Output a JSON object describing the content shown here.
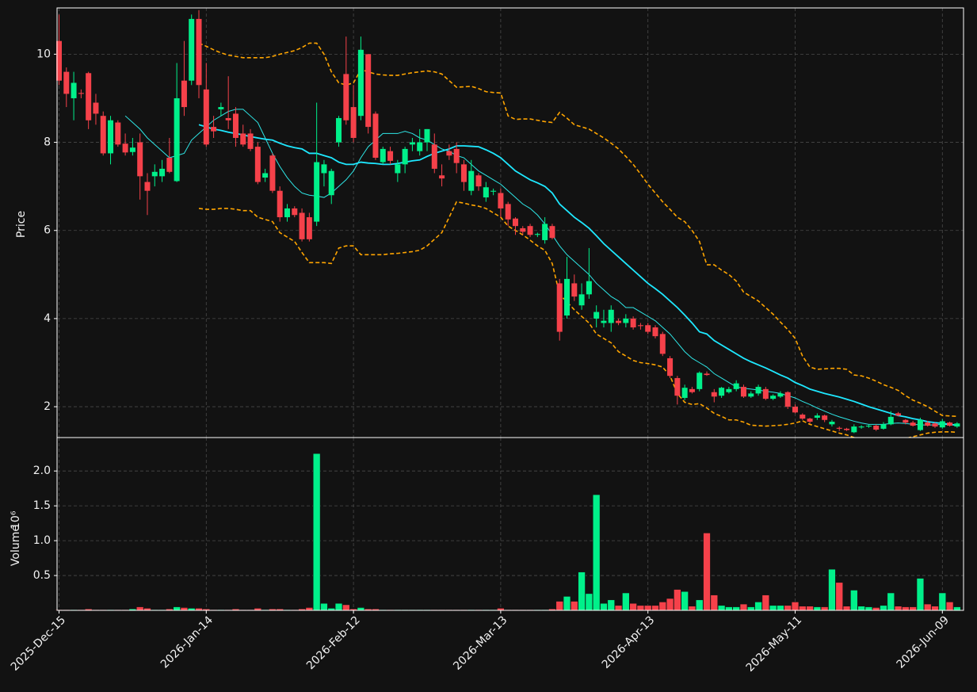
{
  "chart_data": {
    "type": "candlestick",
    "grid": true,
    "up_color": "#00f08a",
    "down_color": "#f5414a",
    "ylabel": "Price",
    "ylim": [
      1.3,
      11.05
    ],
    "yticks": [
      2,
      4,
      6,
      8,
      10
    ],
    "volume_label": "Volume",
    "volume_scale_label": "10⁶",
    "volume_ylim": [
      0,
      2.48
    ],
    "volume_yticks": [
      0.5,
      {
        "value": 1,
        "label": "1.0"
      },
      1.5,
      {
        "value": 2,
        "label": "2.0"
      }
    ],
    "categories": [
      "2025-Dec-15",
      null,
      null,
      null,
      null,
      null,
      null,
      null,
      null,
      null,
      null,
      null,
      null,
      null,
      null,
      null,
      null,
      null,
      null,
      null,
      "2026-Jan-14",
      null,
      null,
      null,
      null,
      null,
      null,
      null,
      null,
      null,
      null,
      null,
      null,
      null,
      null,
      null,
      null,
      null,
      null,
      null,
      "2026-Feb-12",
      null,
      null,
      null,
      null,
      null,
      null,
      null,
      null,
      null,
      null,
      null,
      null,
      null,
      null,
      null,
      null,
      null,
      null,
      null,
      "2026-Mar-13",
      null,
      null,
      null,
      null,
      null,
      null,
      null,
      null,
      null,
      null,
      null,
      null,
      null,
      null,
      null,
      null,
      null,
      null,
      null,
      "2026-Apr-13",
      null,
      null,
      null,
      null,
      null,
      null,
      null,
      null,
      null,
      null,
      null,
      null,
      null,
      null,
      null,
      null,
      null,
      null,
      null,
      "2026-May-11",
      null,
      null,
      null,
      null,
      null,
      null,
      null,
      null,
      null,
      null,
      null,
      null,
      null,
      null,
      null,
      null,
      null,
      null,
      null,
      "2026-Jun-09",
      null,
      null
    ],
    "open": [
      10.3,
      9.6,
      9.0,
      9.12,
      9.57,
      8.9,
      8.6,
      7.75,
      8.45,
      7.97,
      7.78,
      8.0,
      7.1,
      7.23,
      7.23,
      7.65,
      7.12,
      9.4,
      9.4,
      10.8,
      9.2,
      8.35,
      8.75,
      8.55,
      8.65,
      8.2,
      8.2,
      7.9,
      7.2,
      7.7,
      6.9,
      6.3,
      6.5,
      6.4,
      6.3,
      6.2,
      7.3,
      6.8,
      8.0,
      9.55,
      8.8,
      8.6,
      10.0,
      8.65,
      7.55,
      7.8,
      7.3,
      7.5,
      7.95,
      7.8,
      8.0,
      7.95,
      7.25,
      7.8,
      7.85,
      7.5,
      6.9,
      7.25,
      6.75,
      6.88,
      6.85,
      6.6,
      6.27,
      6.05,
      6.1,
      5.9,
      5.78,
      6.1,
      4.8,
      4.07,
      4.8,
      4.3,
      4.55,
      4.0,
      3.9,
      3.9,
      3.95,
      3.9,
      4.0,
      3.85,
      3.85,
      3.8,
      3.65,
      3.1,
      2.65,
      2.2,
      2.4,
      2.4,
      2.75,
      2.33,
      2.25,
      2.33,
      2.4,
      2.45,
      2.23,
      2.3,
      2.4,
      2.18,
      2.23,
      2.33,
      2.0,
      1.82,
      1.73,
      1.75,
      1.8,
      1.6,
      1.52,
      1.5,
      1.42,
      1.53,
      1.55,
      1.57,
      1.5,
      1.6,
      1.85,
      1.7,
      1.64,
      1.47,
      1.64,
      1.62,
      1.53,
      1.64,
      1.55
    ],
    "high": [
      10.9,
      9.7,
      9.6,
      9.2,
      9.6,
      9.1,
      8.7,
      8.6,
      8.5,
      8.2,
      8.1,
      8.2,
      7.3,
      7.5,
      7.6,
      8.1,
      9.8,
      10.3,
      10.9,
      11.0,
      9.8,
      8.6,
      8.9,
      9.5,
      8.8,
      8.4,
      8.3,
      8.0,
      7.4,
      7.75,
      7.0,
      6.6,
      6.55,
      6.5,
      6.4,
      8.9,
      7.6,
      7.4,
      8.6,
      10.4,
      9.3,
      10.4,
      10.0,
      8.7,
      7.9,
      7.9,
      7.6,
      7.9,
      8.1,
      8.3,
      8.3,
      8.2,
      7.5,
      7.95,
      8.0,
      7.6,
      7.6,
      7.3,
      7.1,
      6.95,
      6.95,
      6.65,
      6.3,
      6.1,
      6.15,
      5.95,
      6.3,
      6.15,
      4.9,
      5.4,
      5.0,
      4.8,
      5.6,
      4.3,
      4.2,
      4.3,
      4.0,
      4.1,
      4.05,
      3.9,
      3.9,
      3.85,
      3.7,
      3.15,
      2.7,
      2.5,
      2.45,
      2.8,
      2.8,
      2.4,
      2.45,
      2.45,
      2.6,
      2.5,
      2.35,
      2.5,
      2.45,
      2.28,
      2.35,
      2.35,
      2.05,
      1.85,
      1.75,
      1.85,
      1.82,
      1.7,
      1.55,
      1.52,
      1.6,
      1.58,
      1.6,
      1.6,
      1.65,
      1.9,
      1.88,
      1.72,
      1.68,
      1.75,
      1.68,
      1.65,
      1.72,
      1.66,
      1.65
    ],
    "low": [
      9.3,
      8.8,
      8.5,
      9.0,
      8.3,
      8.4,
      7.7,
      7.5,
      7.9,
      7.7,
      7.7,
      6.7,
      6.35,
      7.0,
      7.1,
      7.3,
      7.1,
      8.6,
      9.3,
      9.0,
      7.9,
      8.1,
      8.6,
      8.3,
      7.9,
      7.9,
      7.8,
      7.05,
      7.1,
      6.85,
      6.2,
      6.2,
      6.3,
      5.75,
      5.75,
      6.1,
      7.0,
      6.6,
      7.9,
      8.4,
      8.0,
      8.5,
      8.2,
      7.6,
      7.5,
      7.5,
      7.1,
      7.3,
      7.8,
      7.7,
      7.8,
      7.3,
      7.0,
      7.6,
      7.3,
      6.9,
      6.8,
      6.9,
      6.65,
      6.8,
      6.3,
      6.1,
      5.9,
      5.9,
      5.85,
      5.85,
      5.7,
      5.8,
      3.5,
      4.0,
      4.4,
      4.2,
      4.45,
      3.8,
      3.8,
      3.7,
      3.85,
      3.8,
      3.75,
      3.75,
      3.65,
      3.55,
      3.15,
      2.65,
      2.05,
      2.15,
      2.3,
      2.35,
      2.7,
      2.1,
      2.2,
      2.3,
      2.35,
      2.2,
      2.2,
      2.25,
      2.15,
      2.15,
      2.2,
      1.95,
      1.85,
      1.7,
      1.62,
      1.7,
      1.65,
      1.55,
      1.45,
      1.45,
      1.4,
      1.5,
      1.52,
      1.45,
      1.48,
      1.58,
      1.78,
      1.6,
      1.55,
      1.45,
      1.55,
      1.52,
      1.5,
      1.55,
      1.52
    ],
    "close": [
      9.4,
      9.1,
      9.35,
      9.1,
      8.5,
      8.65,
      7.75,
      8.5,
      7.95,
      7.77,
      7.88,
      7.23,
      6.9,
      7.33,
      7.4,
      7.33,
      9.0,
      8.8,
      10.8,
      9.3,
      7.95,
      8.25,
      8.8,
      8.5,
      8.1,
      7.95,
      7.85,
      7.1,
      7.3,
      6.9,
      6.3,
      6.5,
      6.35,
      5.8,
      5.8,
      7.55,
      7.5,
      7.35,
      8.55,
      8.5,
      8.1,
      10.1,
      8.35,
      7.65,
      7.85,
      7.58,
      7.5,
      7.85,
      8.0,
      8.0,
      8.3,
      7.4,
      7.18,
      7.7,
      7.53,
      7.1,
      7.35,
      7.0,
      6.98,
      6.9,
      6.5,
      6.25,
      6.1,
      5.97,
      5.9,
      5.92,
      6.15,
      5.83,
      3.7,
      4.9,
      4.5,
      4.55,
      4.85,
      4.15,
      3.95,
      4.2,
      3.9,
      4.0,
      3.8,
      3.83,
      3.7,
      3.6,
      3.2,
      2.7,
      2.25,
      2.43,
      2.33,
      2.77,
      2.72,
      2.23,
      2.43,
      2.4,
      2.53,
      2.23,
      2.3,
      2.45,
      2.18,
      2.25,
      2.3,
      2.0,
      1.87,
      1.73,
      1.66,
      1.8,
      1.7,
      1.66,
      1.5,
      1.47,
      1.55,
      1.55,
      1.57,
      1.48,
      1.6,
      1.77,
      1.8,
      1.64,
      1.57,
      1.7,
      1.57,
      1.55,
      1.67,
      1.57,
      1.62
    ],
    "volume": [
      0.01,
      0.01,
      0.01,
      0.01,
      0.02,
      0.01,
      0.01,
      0.01,
      0.01,
      0.01,
      0.02,
      0.05,
      0.03,
      0.01,
      0.01,
      0.02,
      0.05,
      0.04,
      0.03,
      0.03,
      0.02,
      0.01,
      0.01,
      0.01,
      0.02,
      0.01,
      0.01,
      0.03,
      0.01,
      0.02,
      0.02,
      0.01,
      0.01,
      0.02,
      0.04,
      2.25,
      0.1,
      0.03,
      0.1,
      0.08,
      0.02,
      0.04,
      0.02,
      0.02,
      0.01,
      0.01,
      0.01,
      0.01,
      0.01,
      0.01,
      0.01,
      0.01,
      0.01,
      0.01,
      0.01,
      0.01,
      0.01,
      0.01,
      0.01,
      0.01,
      0.03,
      0.01,
      0.01,
      0.01,
      0.01,
      0.01,
      0.01,
      0.02,
      0.13,
      0.2,
      0.13,
      0.55,
      0.24,
      1.66,
      0.1,
      0.15,
      0.07,
      0.25,
      0.1,
      0.07,
      0.07,
      0.07,
      0.12,
      0.17,
      0.3,
      0.27,
      0.06,
      0.15,
      1.11,
      0.22,
      0.07,
      0.05,
      0.05,
      0.09,
      0.05,
      0.12,
      0.22,
      0.07,
      0.07,
      0.07,
      0.12,
      0.06,
      0.06,
      0.05,
      0.05,
      0.59,
      0.4,
      0.06,
      0.29,
      0.06,
      0.05,
      0.04,
      0.07,
      0.25,
      0.06,
      0.05,
      0.05,
      0.46,
      0.09,
      0.06,
      0.25,
      0.12,
      0.05
    ],
    "lines": [
      {
        "color": "#2ee6e6",
        "style": "solid",
        "width": 1,
        "values": [
          null,
          null,
          null,
          null,
          null,
          null,
          null,
          null,
          null,
          8.6,
          8.45,
          8.3,
          8.1,
          7.95,
          7.8,
          7.65,
          7.7,
          7.75,
          8.05,
          8.2,
          8.35,
          8.5,
          8.6,
          8.7,
          8.75,
          8.75,
          8.6,
          8.45,
          8.1,
          7.75,
          7.45,
          7.2,
          7.0,
          6.85,
          6.8,
          6.78,
          6.75,
          6.85,
          7.0,
          7.15,
          7.35,
          7.65,
          7.9,
          8.05,
          8.2,
          8.2,
          8.2,
          8.25,
          8.2,
          8.1,
          8.05,
          7.95,
          7.85,
          7.8,
          7.7,
          7.65,
          7.5,
          7.35,
          7.25,
          7.15,
          7.05,
          6.9,
          6.75,
          6.6,
          6.5,
          6.35,
          6.15,
          5.9,
          5.65,
          5.45,
          5.3,
          5.15,
          5.0,
          4.8,
          4.65,
          4.5,
          4.4,
          4.25,
          4.25,
          4.15,
          4.05,
          3.95,
          3.8,
          3.65,
          3.45,
          3.25,
          3.1,
          3.0,
          2.9,
          2.75,
          2.65,
          2.55,
          2.45,
          2.42,
          2.4,
          2.38,
          2.35,
          2.33,
          2.3,
          2.25,
          2.2,
          2.12,
          2.05,
          1.97,
          1.9,
          1.83,
          1.77,
          1.72,
          1.67,
          1.63,
          1.6,
          1.6,
          1.6,
          1.62,
          1.63,
          1.62,
          1.6,
          1.59,
          1.58,
          1.59,
          1.6,
          1.59,
          1.58
        ]
      },
      {
        "color": "#1ee8ff",
        "style": "solid",
        "width": 1.8,
        "values": [
          null,
          null,
          null,
          null,
          null,
          null,
          null,
          null,
          null,
          null,
          null,
          null,
          null,
          null,
          null,
          null,
          null,
          null,
          null,
          8.4,
          8.35,
          8.3,
          8.27,
          8.23,
          8.2,
          8.17,
          8.13,
          8.1,
          8.07,
          8.05,
          7.98,
          7.92,
          7.88,
          7.85,
          7.75,
          7.75,
          7.7,
          7.65,
          7.55,
          7.5,
          7.5,
          7.55,
          7.53,
          7.52,
          7.5,
          7.5,
          7.52,
          7.55,
          7.58,
          7.6,
          7.68,
          7.75,
          7.8,
          7.85,
          7.92,
          7.92,
          7.91,
          7.9,
          7.83,
          7.75,
          7.65,
          7.5,
          7.35,
          7.25,
          7.15,
          7.08,
          7.0,
          6.85,
          6.6,
          6.45,
          6.3,
          6.18,
          6.05,
          5.88,
          5.7,
          5.55,
          5.4,
          5.25,
          5.1,
          4.95,
          4.8,
          4.68,
          4.55,
          4.4,
          4.25,
          4.08,
          3.9,
          3.7,
          3.65,
          3.5,
          3.4,
          3.3,
          3.2,
          3.1,
          3.02,
          2.95,
          2.88,
          2.8,
          2.72,
          2.65,
          2.55,
          2.48,
          2.4,
          2.35,
          2.3,
          2.26,
          2.22,
          2.17,
          2.12,
          2.06,
          2.0,
          1.95,
          1.9,
          1.85,
          1.8,
          1.77,
          1.73,
          1.7,
          1.66,
          1.64,
          1.62,
          1.6,
          1.58
        ]
      },
      {
        "color": "#ffa500",
        "style": "dashed",
        "width": 1.6,
        "values": [
          null,
          null,
          null,
          null,
          null,
          null,
          null,
          null,
          null,
          null,
          null,
          null,
          null,
          null,
          null,
          null,
          null,
          null,
          null,
          10.25,
          10.18,
          10.1,
          10.03,
          9.98,
          9.95,
          9.92,
          9.92,
          9.92,
          9.92,
          9.95,
          10.0,
          10.04,
          10.08,
          10.15,
          10.25,
          10.25,
          10.0,
          9.6,
          9.35,
          9.3,
          9.35,
          9.65,
          9.6,
          9.55,
          9.53,
          9.52,
          9.52,
          9.55,
          9.58,
          9.6,
          9.62,
          9.6,
          9.55,
          9.4,
          9.25,
          9.26,
          9.27,
          9.22,
          9.15,
          9.13,
          9.12,
          8.6,
          8.52,
          8.53,
          8.53,
          8.5,
          8.47,
          8.45,
          8.68,
          8.55,
          8.4,
          8.35,
          8.3,
          8.2,
          8.1,
          7.98,
          7.85,
          7.68,
          7.5,
          7.28,
          7.05,
          6.85,
          6.65,
          6.48,
          6.3,
          6.2,
          6.0,
          5.75,
          5.22,
          5.22,
          5.1,
          5.0,
          4.85,
          4.6,
          4.5,
          4.4,
          4.25,
          4.1,
          3.92,
          3.75,
          3.55,
          3.15,
          2.9,
          2.85,
          2.86,
          2.87,
          2.87,
          2.85,
          2.72,
          2.7,
          2.65,
          2.58,
          2.5,
          2.44,
          2.37,
          2.25,
          2.15,
          2.08,
          2.0,
          1.9,
          1.8,
          1.79,
          1.78
        ]
      },
      {
        "color": "#ffa500",
        "style": "dashed",
        "width": 1.6,
        "values": [
          null,
          null,
          null,
          null,
          null,
          null,
          null,
          null,
          null,
          null,
          null,
          null,
          null,
          null,
          null,
          null,
          null,
          null,
          null,
          6.5,
          6.48,
          6.48,
          6.5,
          6.5,
          6.48,
          6.45,
          6.45,
          6.3,
          6.25,
          6.2,
          5.95,
          5.85,
          5.75,
          5.5,
          5.27,
          5.27,
          5.27,
          5.25,
          5.6,
          5.65,
          5.65,
          5.45,
          5.45,
          5.45,
          5.45,
          5.47,
          5.48,
          5.5,
          5.52,
          5.55,
          5.65,
          5.8,
          5.95,
          6.3,
          6.65,
          6.62,
          6.58,
          6.55,
          6.5,
          6.4,
          6.3,
          6.1,
          6.0,
          5.9,
          5.78,
          5.65,
          5.55,
          5.25,
          4.55,
          4.38,
          4.2,
          4.05,
          3.9,
          3.65,
          3.55,
          3.45,
          3.25,
          3.15,
          3.05,
          3.0,
          2.98,
          2.95,
          2.9,
          2.7,
          2.3,
          2.1,
          2.05,
          2.07,
          1.97,
          1.85,
          1.78,
          1.7,
          1.7,
          1.65,
          1.58,
          1.57,
          1.56,
          1.57,
          1.58,
          1.6,
          1.63,
          1.68,
          1.6,
          1.55,
          1.5,
          1.45,
          1.4,
          1.36,
          1.3,
          1.27,
          1.25,
          1.24,
          1.23,
          1.23,
          1.25,
          1.28,
          1.32,
          1.36,
          1.4,
          1.42,
          1.43,
          1.43,
          1.42
        ]
      }
    ]
  }
}
